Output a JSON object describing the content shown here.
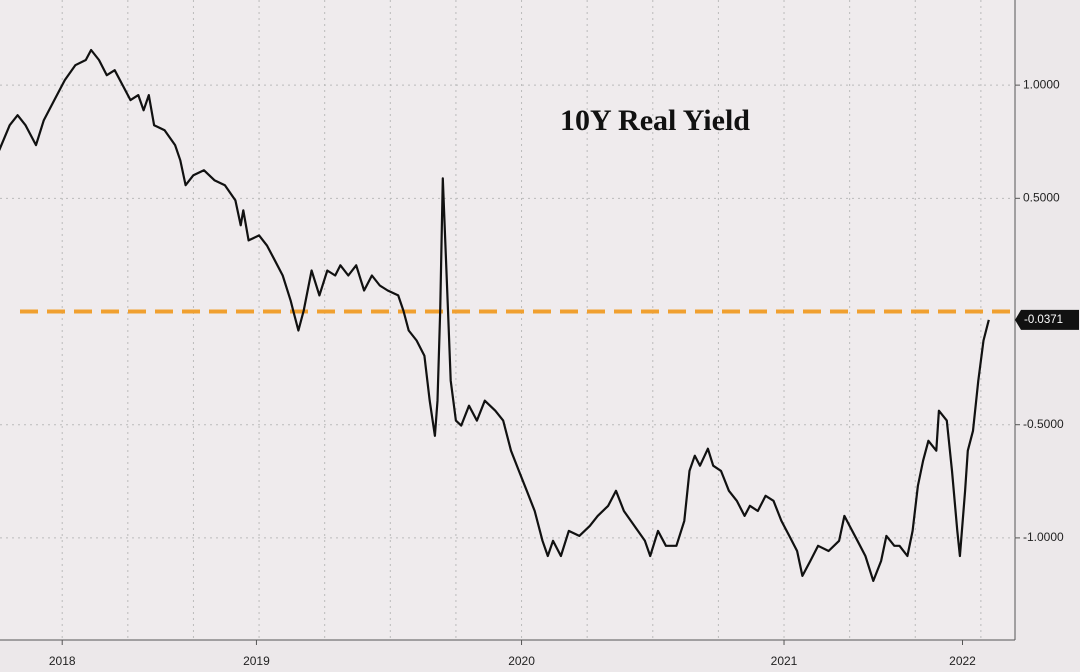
{
  "chart_data": {
    "type": "line",
    "annotation": "10Y Real Yield",
    "x": [
      2018.51,
      2018.55,
      2018.58,
      2018.61,
      2018.65,
      2018.68,
      2018.72,
      2018.76,
      2018.8,
      2018.84,
      2018.86,
      2018.89,
      2018.92,
      2018.95,
      2018.98,
      2019.01,
      2019.04,
      2019.06,
      2019.08,
      2019.1,
      2019.14,
      2019.18,
      2019.2,
      2019.22,
      2019.25,
      2019.29,
      2019.33,
      2019.37,
      2019.41,
      2019.43,
      2019.44,
      2019.46,
      2019.5,
      2019.53,
      2019.56,
      2019.59,
      2019.62,
      2019.63,
      2019.65,
      2019.67,
      2019.7,
      2019.73,
      2019.76,
      2019.79,
      2019.81,
      2019.84,
      2019.87,
      2019.9,
      2019.93,
      2019.96,
      2019.99,
      2020.03,
      2020.05,
      2020.07,
      2020.1,
      2020.13,
      2020.15,
      2020.17,
      2020.18,
      2020.19,
      2020.2,
      2020.22,
      2020.23,
      2020.25,
      2020.27,
      2020.3,
      2020.33,
      2020.36,
      2020.4,
      2020.43,
      2020.46,
      2020.49,
      2020.52,
      2020.55,
      2020.58,
      2020.6,
      2020.62,
      2020.65,
      2020.68,
      2020.72,
      2020.76,
      2020.79,
      2020.83,
      2020.86,
      2020.89,
      2020.93,
      2020.97,
      2020.99,
      2021.02,
      2021.05,
      2021.09,
      2021.12,
      2021.14,
      2021.16,
      2021.18,
      2021.21,
      2021.23,
      2021.26,
      2021.29,
      2021.32,
      2021.35,
      2021.37,
      2021.4,
      2021.43,
      2021.46,
      2021.49,
      2021.52,
      2021.55,
      2021.57,
      2021.6,
      2021.63,
      2021.67,
      2021.71,
      2021.73,
      2021.75,
      2021.78,
      2021.81,
      2021.84,
      2021.87,
      2021.89,
      2021.92,
      2021.94,
      2021.97,
      2021.99,
      2022.01,
      2022.03,
      2022.05,
      2022.08,
      2022.09,
      2022.12,
      2022.14,
      2022.16,
      2022.17,
      2022.19,
      2022.2,
      2022.22,
      2022.24,
      2022.26,
      2022.28
    ],
    "series": [
      {
        "name": "10Y Real Yield",
        "color": "#111111",
        "values": [
          0.712,
          0.823,
          0.867,
          0.823,
          0.735,
          0.845,
          0.934,
          1.022,
          1.088,
          1.111,
          1.155,
          1.111,
          1.044,
          1.066,
          1.0,
          0.934,
          0.956,
          0.889,
          0.956,
          0.823,
          0.801,
          0.735,
          0.668,
          0.558,
          0.602,
          0.624,
          0.58,
          0.558,
          0.491,
          0.381,
          0.447,
          0.314,
          0.336,
          0.292,
          0.226,
          0.159,
          0.049,
          0.004,
          -0.084,
          0.004,
          0.181,
          0.071,
          0.181,
          0.159,
          0.204,
          0.159,
          0.204,
          0.093,
          0.159,
          0.115,
          0.093,
          0.071,
          0.004,
          -0.084,
          -0.128,
          -0.195,
          -0.394,
          -0.549,
          -0.394,
          0.004,
          0.588,
          0.004,
          -0.305,
          -0.482,
          -0.504,
          -0.416,
          -0.482,
          -0.394,
          -0.438,
          -0.482,
          -0.615,
          -0.704,
          -0.792,
          -0.881,
          -1.013,
          -1.08,
          -1.013,
          -1.08,
          -0.969,
          -0.991,
          -0.947,
          -0.903,
          -0.858,
          -0.792,
          -0.881,
          -0.947,
          -1.013,
          -1.08,
          -0.969,
          -1.035,
          -1.035,
          -0.925,
          -0.704,
          -0.637,
          -0.681,
          -0.606,
          -0.681,
          -0.704,
          -0.792,
          -0.836,
          -0.903,
          -0.858,
          -0.881,
          -0.814,
          -0.836,
          -0.925,
          -0.991,
          -1.058,
          -1.168,
          -1.102,
          -1.035,
          -1.058,
          -1.013,
          -0.903,
          -0.947,
          -1.013,
          -1.08,
          -1.19,
          -1.102,
          -0.991,
          -1.035,
          -1.035,
          -1.08,
          -0.969,
          -0.77,
          -0.659,
          -0.571,
          -0.615,
          -0.438,
          -0.482,
          -0.704,
          -0.969,
          -1.08,
          -0.792,
          -0.615,
          -0.527,
          -0.305,
          -0.128,
          -0.0371
        ]
      }
    ],
    "reference_line": {
      "value": 0,
      "color": "#f0a030"
    },
    "xlim": [
      2018.513,
      2022.38
    ],
    "xticks": [
      {
        "value": 2018.75,
        "label": "2018"
      },
      {
        "value": 2019.49,
        "label": "2019"
      },
      {
        "value": 2020.5,
        "label": "2020"
      },
      {
        "value": 2021.5,
        "label": "2021"
      },
      {
        "value": 2022.18,
        "label": "2022"
      }
    ],
    "x_grid": [
      2018.75,
      2019,
      2019.25,
      2019.5,
      2019.75,
      2020,
      2020.25,
      2020.5,
      2020.75,
      2021,
      2021.25,
      2021.5,
      2021.75,
      2022,
      2022.25
    ],
    "ylim": [
      -1.451,
      1.376
    ],
    "yticks": [
      {
        "value": 1,
        "label": "1.0000"
      },
      {
        "value": 0.5,
        "label": "0.5000"
      },
      {
        "value": -0.5,
        "label": "-0.5000"
      },
      {
        "value": -1,
        "label": "-1.0000"
      }
    ],
    "grid": true
  }
}
